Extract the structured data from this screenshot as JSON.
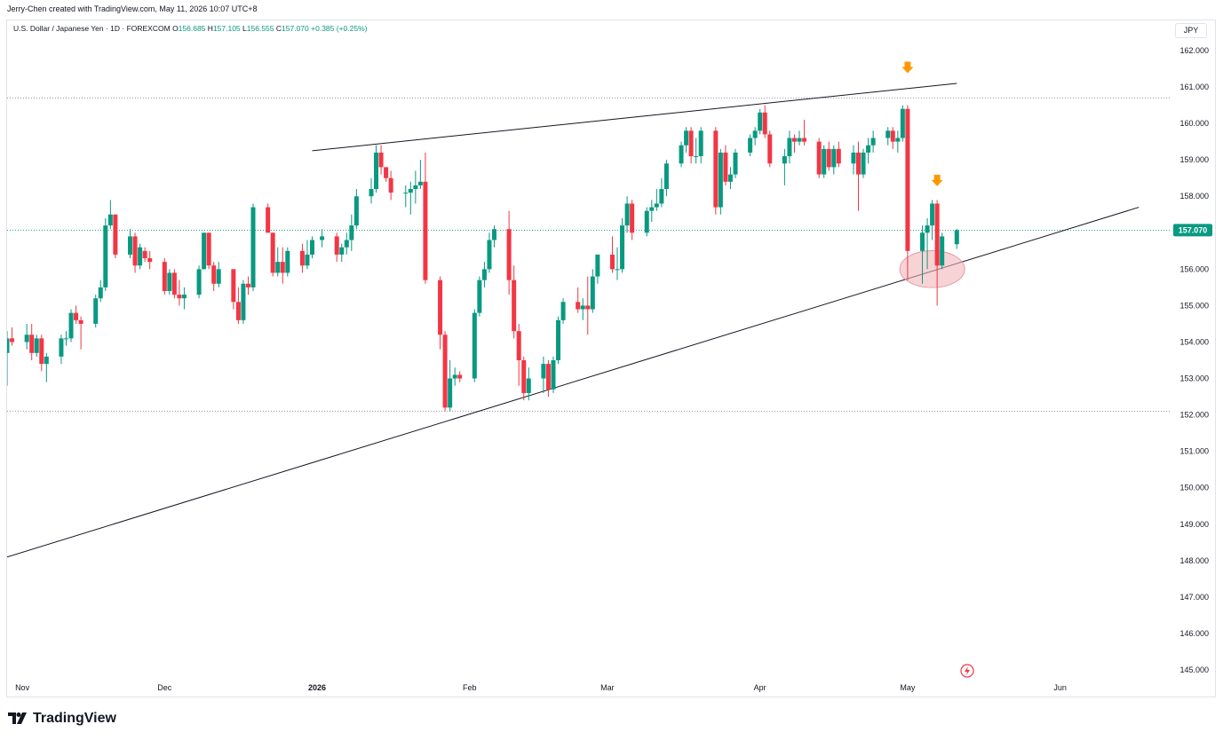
{
  "attribution": "Jerry-Chen created with TradingView.com, May 11, 2026 10:07 UTC+8",
  "legend": {
    "symbol": "U.S. Dollar / Japanese Yen · 1D · FOREXCOM",
    "o_label": "O",
    "o_value": "156.685",
    "h_label": "H",
    "h_value": "157.105",
    "l_label": "L",
    "l_value": "156.555",
    "c_label": "C",
    "c_value": "157.070",
    "change": "+0.385 (+0.25%)"
  },
  "currency_button": "JPY",
  "brand": "TradingView",
  "icons": {
    "lightning": "lightning-icon",
    "arrow": "arrow-down-icon",
    "logo": "tradingview-logo-icon"
  },
  "colors": {
    "up": "#089981",
    "down": "#F23645",
    "arrow": "#FF9800",
    "highlight": "#F4B6B9",
    "grid": "#787B86"
  },
  "chart_data": {
    "type": "candlestick",
    "instrument": "U.S. Dollar / Japanese Yen",
    "interval": "1D",
    "exchange": "FOREXCOM",
    "ylim": [
      144.8,
      162.6
    ],
    "y_ticks": [
      "162.000",
      "161.000",
      "160.000",
      "159.000",
      "158.000",
      "157.000",
      "156.000",
      "155.000",
      "154.000",
      "153.000",
      "152.000",
      "151.000",
      "150.000",
      "149.000",
      "148.000",
      "147.000",
      "146.000",
      "145.000"
    ],
    "x_ticks": [
      {
        "label": "Nov",
        "date": "2025-11-01"
      },
      {
        "label": "Dec",
        "date": "2025-12-01"
      },
      {
        "label": "2026",
        "date": "2026-01-01"
      },
      {
        "label": "Feb",
        "date": "2026-02-01"
      },
      {
        "label": "Mar",
        "date": "2026-03-01"
      },
      {
        "label": "Apr",
        "date": "2026-04-01"
      },
      {
        "label": "May",
        "date": "2026-05-01"
      },
      {
        "label": "Jun",
        "date": "2026-06-01"
      }
    ],
    "xlim": [
      "2025-10-30",
      "2026-06-22"
    ],
    "last_price": "157.070",
    "horizontal_dotted_levels": [
      160.7,
      152.1
    ],
    "candles": [
      [
        "2025-10-30",
        153.7,
        154.3,
        152.8,
        154.1
      ],
      [
        "2025-10-31",
        154.1,
        154.4,
        153.9,
        154.0
      ],
      [
        "2025-11-03",
        154.0,
        154.5,
        153.8,
        154.2
      ],
      [
        "2025-11-04",
        154.2,
        154.5,
        153.5,
        153.7
      ],
      [
        "2025-11-05",
        153.7,
        154.2,
        153.6,
        154.1
      ],
      [
        "2025-11-06",
        154.1,
        154.2,
        153.2,
        153.4
      ],
      [
        "2025-11-07",
        153.4,
        153.7,
        152.9,
        153.6
      ],
      [
        "2025-11-10",
        153.6,
        154.2,
        153.4,
        154.1
      ],
      [
        "2025-11-11",
        154.1,
        154.3,
        153.9,
        154.1
      ],
      [
        "2025-11-12",
        154.1,
        154.9,
        154.0,
        154.8
      ],
      [
        "2025-11-13",
        154.8,
        155.0,
        154.5,
        154.6
      ],
      [
        "2025-11-14",
        154.6,
        154.7,
        153.8,
        154.5
      ],
      [
        "2025-11-17",
        154.5,
        155.3,
        154.4,
        155.2
      ],
      [
        "2025-11-18",
        155.2,
        155.7,
        155.1,
        155.5
      ],
      [
        "2025-11-19",
        155.5,
        157.4,
        155.4,
        157.2
      ],
      [
        "2025-11-20",
        157.2,
        157.9,
        157.1,
        157.5
      ],
      [
        "2025-11-21",
        157.5,
        157.5,
        156.3,
        156.4
      ],
      [
        "2025-11-24",
        156.4,
        157.1,
        156.3,
        156.9
      ],
      [
        "2025-11-25",
        156.9,
        157.0,
        155.9,
        156.1
      ],
      [
        "2025-11-26",
        156.1,
        156.7,
        156.0,
        156.6
      ],
      [
        "2025-11-27",
        156.5,
        156.6,
        156.2,
        156.3
      ],
      [
        "2025-11-28",
        156.3,
        156.5,
        156.0,
        156.2
      ],
      [
        "2025-12-01",
        156.2,
        156.3,
        155.3,
        155.4
      ],
      [
        "2025-12-02",
        155.4,
        156.0,
        155.3,
        155.9
      ],
      [
        "2025-12-03",
        155.9,
        156.0,
        155.2,
        155.3
      ],
      [
        "2025-12-04",
        155.3,
        155.7,
        155.0,
        155.2
      ],
      [
        "2025-12-05",
        155.2,
        155.5,
        154.9,
        155.3
      ],
      [
        "2025-12-08",
        155.3,
        156.1,
        155.2,
        156.0
      ],
      [
        "2025-12-09",
        156.0,
        157.0,
        156.0,
        157.0
      ],
      [
        "2025-12-10",
        157.0,
        157.0,
        156.0,
        156.1
      ],
      [
        "2025-12-11",
        156.1,
        156.2,
        155.4,
        155.6
      ],
      [
        "2025-12-12",
        155.6,
        156.2,
        155.5,
        156.0
      ],
      [
        "2025-12-15",
        156.0,
        156.0,
        154.9,
        155.1
      ],
      [
        "2025-12-16",
        155.1,
        155.5,
        154.5,
        154.6
      ],
      [
        "2025-12-17",
        154.6,
        155.7,
        154.5,
        155.6
      ],
      [
        "2025-12-18",
        155.6,
        155.8,
        155.3,
        155.5
      ],
      [
        "2025-12-19",
        155.5,
        157.8,
        155.4,
        157.7
      ],
      [
        "2025-12-22",
        157.7,
        157.8,
        157.0,
        157.0
      ],
      [
        "2025-12-23",
        157.0,
        157.0,
        155.8,
        155.9
      ],
      [
        "2025-12-24",
        155.9,
        156.6,
        155.8,
        156.2
      ],
      [
        "2025-12-25",
        156.2,
        156.6,
        155.6,
        155.9
      ],
      [
        "2025-12-26",
        155.9,
        156.6,
        155.8,
        156.5
      ],
      [
        "2025-12-29",
        156.5,
        156.7,
        155.9,
        156.1
      ],
      [
        "2025-12-30",
        156.1,
        156.8,
        156.0,
        156.4
      ],
      [
        "2025-12-31",
        156.4,
        156.9,
        156.3,
        156.8
      ],
      [
        "2026-01-02",
        156.8,
        157.1,
        156.6,
        156.9
      ],
      [
        "2026-01-05",
        156.9,
        157.0,
        156.2,
        156.4
      ],
      [
        "2026-01-06",
        156.4,
        156.7,
        156.2,
        156.6
      ],
      [
        "2026-01-07",
        156.6,
        157.0,
        156.4,
        156.8
      ],
      [
        "2026-01-08",
        156.8,
        157.5,
        156.5,
        157.2
      ],
      [
        "2026-01-09",
        157.2,
        158.2,
        157.1,
        158.0
      ],
      [
        "2026-01-12",
        158.0,
        158.5,
        157.8,
        158.2
      ],
      [
        "2026-01-13",
        158.2,
        159.4,
        158.1,
        159.2
      ],
      [
        "2026-01-14",
        159.2,
        159.4,
        158.6,
        158.8
      ],
      [
        "2026-01-15",
        158.8,
        158.8,
        158.4,
        158.5
      ],
      [
        "2026-01-16",
        158.5,
        158.7,
        157.9,
        158.1
      ],
      [
        "2026-01-19",
        158.1,
        158.3,
        157.7,
        158.1
      ],
      [
        "2026-01-20",
        158.1,
        158.4,
        157.5,
        158.2
      ],
      [
        "2026-01-21",
        158.2,
        158.7,
        157.8,
        158.3
      ],
      [
        "2026-01-22",
        158.3,
        159.0,
        158.2,
        158.4
      ],
      [
        "2026-01-23",
        158.4,
        159.2,
        155.6,
        155.7
      ],
      [
        "2026-01-26",
        155.7,
        155.8,
        153.8,
        154.2
      ],
      [
        "2026-01-27",
        154.2,
        154.3,
        152.1,
        152.2
      ],
      [
        "2026-01-28",
        152.2,
        153.5,
        152.1,
        153.0
      ],
      [
        "2026-01-29",
        153.0,
        153.3,
        152.8,
        153.1
      ],
      [
        "2026-01-30",
        153.1,
        153.2,
        152.9,
        153.0
      ],
      [
        "2026-02-02",
        153.0,
        154.9,
        152.9,
        154.8
      ],
      [
        "2026-02-03",
        154.8,
        155.8,
        154.7,
        155.7
      ],
      [
        "2026-02-04",
        155.7,
        156.2,
        155.5,
        156.0
      ],
      [
        "2026-02-05",
        156.0,
        157.0,
        155.9,
        156.8
      ],
      [
        "2026-02-06",
        156.8,
        157.2,
        156.6,
        157.1
      ],
      [
        "2026-02-09",
        157.1,
        157.6,
        155.3,
        155.7
      ],
      [
        "2026-02-10",
        155.7,
        156.1,
        154.1,
        154.3
      ],
      [
        "2026-02-11",
        154.3,
        154.5,
        152.8,
        153.5
      ],
      [
        "2026-02-12",
        153.5,
        153.6,
        152.4,
        152.6
      ],
      [
        "2026-02-13",
        152.6,
        153.3,
        152.4,
        153.0
      ],
      [
        "2026-02-16",
        153.0,
        153.6,
        152.6,
        153.4
      ],
      [
        "2026-02-17",
        153.4,
        153.5,
        152.5,
        152.7
      ],
      [
        "2026-02-18",
        152.7,
        153.6,
        152.6,
        153.5
      ],
      [
        "2026-02-19",
        153.5,
        154.7,
        153.4,
        154.6
      ],
      [
        "2026-02-20",
        154.6,
        155.2,
        154.5,
        155.1
      ],
      [
        "2026-02-23",
        155.1,
        155.5,
        154.8,
        154.9
      ],
      [
        "2026-02-24",
        154.9,
        155.2,
        154.6,
        155.0
      ],
      [
        "2026-02-25",
        155.0,
        155.8,
        154.2,
        154.9
      ],
      [
        "2026-02-26",
        154.9,
        156.0,
        154.8,
        155.8
      ],
      [
        "2026-02-27",
        155.8,
        156.4,
        155.6,
        156.4
      ],
      [
        "2026-03-02",
        156.4,
        156.9,
        155.9,
        156.0
      ],
      [
        "2026-03-03",
        156.0,
        156.6,
        155.7,
        156.0
      ],
      [
        "2026-03-04",
        156.0,
        157.4,
        155.9,
        157.2
      ],
      [
        "2026-03-05",
        157.2,
        158.0,
        157.0,
        157.8
      ],
      [
        "2026-03-06",
        157.8,
        157.9,
        156.8,
        157.0
      ],
      [
        "2026-03-09",
        157.0,
        157.7,
        156.9,
        157.6
      ],
      [
        "2026-03-10",
        157.6,
        157.9,
        157.3,
        157.7
      ],
      [
        "2026-03-11",
        157.7,
        158.2,
        157.6,
        157.8
      ],
      [
        "2026-03-12",
        157.8,
        158.5,
        157.7,
        158.2
      ],
      [
        "2026-03-13",
        158.2,
        159.0,
        158.0,
        158.9
      ],
      [
        "2026-03-16",
        158.9,
        159.5,
        158.8,
        159.4
      ],
      [
        "2026-03-17",
        159.4,
        159.9,
        159.2,
        159.8
      ],
      [
        "2026-03-18",
        159.8,
        159.9,
        158.9,
        159.1
      ],
      [
        "2026-03-19",
        159.1,
        159.6,
        158.9,
        159.1
      ],
      [
        "2026-03-20",
        159.1,
        159.9,
        158.9,
        159.8
      ],
      [
        "2026-03-23",
        159.8,
        159.9,
        157.5,
        157.7
      ],
      [
        "2026-03-24",
        157.7,
        159.3,
        157.5,
        159.2
      ],
      [
        "2026-03-25",
        159.2,
        159.4,
        158.3,
        158.4
      ],
      [
        "2026-03-26",
        158.4,
        158.8,
        158.2,
        158.6
      ],
      [
        "2026-03-27",
        158.6,
        159.3,
        158.5,
        159.2
      ],
      [
        "2026-03-30",
        159.2,
        159.7,
        159.1,
        159.6
      ],
      [
        "2026-03-31",
        159.6,
        159.9,
        159.4,
        159.8
      ],
      [
        "2026-04-01",
        159.8,
        160.4,
        159.7,
        160.3
      ],
      [
        "2026-04-02",
        160.3,
        160.5,
        159.6,
        159.7
      ],
      [
        "2026-04-03",
        159.7,
        159.8,
        158.8,
        158.9
      ],
      [
        "2026-04-06",
        158.9,
        159.3,
        158.3,
        159.1
      ],
      [
        "2026-04-07",
        159.1,
        159.8,
        158.9,
        159.6
      ],
      [
        "2026-04-08",
        159.6,
        159.7,
        159.2,
        159.5
      ],
      [
        "2026-04-09",
        159.5,
        159.8,
        159.4,
        159.6
      ],
      [
        "2026-04-10",
        159.6,
        160.1,
        159.4,
        159.5
      ],
      [
        "2026-04-13",
        159.5,
        159.6,
        158.5,
        158.6
      ],
      [
        "2026-04-14",
        158.6,
        159.4,
        158.5,
        159.3
      ],
      [
        "2026-04-15",
        159.3,
        159.5,
        158.7,
        158.8
      ],
      [
        "2026-04-16",
        158.8,
        159.4,
        158.6,
        159.3
      ],
      [
        "2026-04-17",
        159.3,
        159.5,
        158.8,
        158.9
      ],
      [
        "2026-04-20",
        158.9,
        159.4,
        158.6,
        159.2
      ],
      [
        "2026-04-21",
        159.2,
        159.5,
        157.6,
        158.6
      ],
      [
        "2026-04-22",
        158.6,
        159.3,
        158.5,
        159.2
      ],
      [
        "2026-04-23",
        159.2,
        159.6,
        158.9,
        159.4
      ],
      [
        "2026-04-24",
        159.4,
        159.8,
        159.2,
        159.6
      ],
      [
        "2026-04-27",
        159.6,
        159.9,
        159.4,
        159.8
      ],
      [
        "2026-04-28",
        159.8,
        159.9,
        159.3,
        159.5
      ],
      [
        "2026-04-29",
        159.5,
        159.8,
        159.2,
        159.6
      ],
      [
        "2026-04-30",
        159.6,
        160.5,
        159.5,
        160.4
      ],
      [
        "2026-05-01",
        160.4,
        160.5,
        155.7,
        156.5
      ],
      [
        "2026-05-04",
        156.5,
        157.2,
        155.6,
        157.0
      ],
      [
        "2026-05-05",
        157.0,
        157.4,
        156.0,
        157.2
      ],
      [
        "2026-05-06",
        157.2,
        157.9,
        156.8,
        157.8
      ],
      [
        "2026-05-07",
        157.8,
        157.9,
        155.0,
        156.1
      ],
      [
        "2026-05-08",
        156.1,
        157.0,
        156.0,
        156.9
      ],
      [
        "2026-05-11",
        156.685,
        157.105,
        156.555,
        157.07
      ]
    ],
    "trendlines": [
      {
        "name": "",
        "from": [
          "2025-12-31",
          159.25
        ],
        "to": [
          "2026-05-11",
          161.1
        ]
      },
      {
        "name": "",
        "from": [
          "2025-10-30",
          148.1
        ],
        "to": [
          "2026-06-17",
          157.7
        ]
      }
    ],
    "highlight_ellipse": {
      "center": [
        "2026-05-06",
        156.0
      ],
      "radius_days": 6,
      "radius_price": 0.55
    },
    "markers": [
      {
        "type": "arrow-down",
        "date": "2026-05-01",
        "price": 161.5
      },
      {
        "type": "arrow-down",
        "date": "2026-05-07",
        "price": 158.4
      }
    ]
  }
}
